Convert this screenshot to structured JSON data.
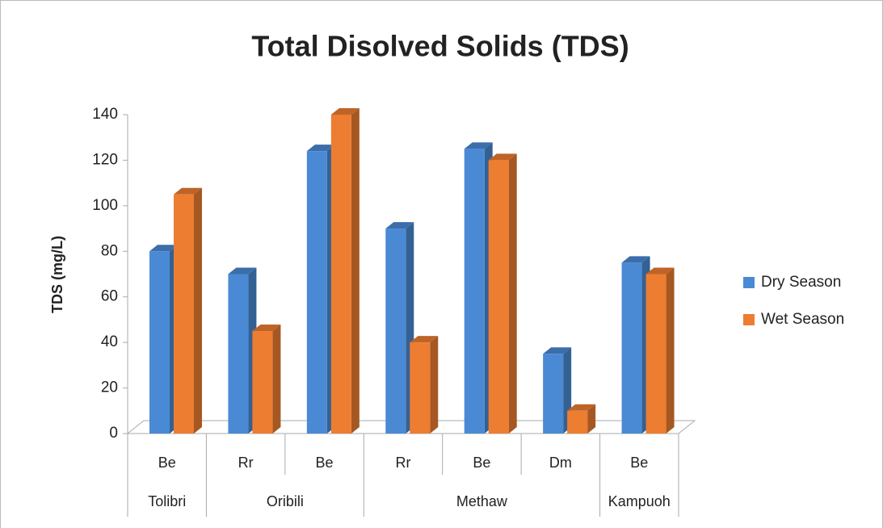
{
  "chart_data": {
    "type": "bar3d",
    "title": "Total Disolved Solids (TDS)",
    "ylabel": "TDS (mg/L)",
    "groups": [
      {
        "name": "Tolibri",
        "categories": [
          "Be"
        ]
      },
      {
        "name": "Oribili",
        "categories": [
          "Rr",
          "Be"
        ]
      },
      {
        "name": "Methaw",
        "categories": [
          "Rr",
          "Be",
          "Dm"
        ]
      },
      {
        "name": "Kampuoh",
        "categories": [
          "Be"
        ]
      }
    ],
    "series": [
      {
        "name": "Dry Season",
        "color": "#4a8ad4",
        "values": [
          80,
          70,
          124,
          90,
          125,
          35,
          75
        ]
      },
      {
        "name": "Wet Season",
        "color": "#ed7d31",
        "values": [
          105,
          45,
          140,
          40,
          120,
          10,
          70
        ]
      }
    ],
    "ylim": [
      0,
      140
    ],
    "yticks": [
      0,
      20,
      40,
      60,
      80,
      100,
      120,
      140
    ],
    "legend": "right"
  }
}
